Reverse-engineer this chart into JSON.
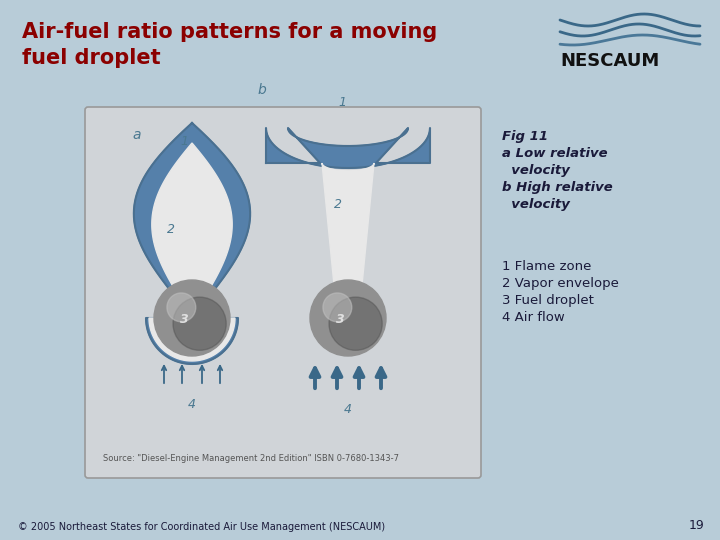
{
  "title_line1": "Air-fuel ratio patterns for a moving",
  "title_line2": "fuel droplet",
  "title_color": "#8B0000",
  "bg_color": "#b8ccd8",
  "panel_bg": "#d0d4d8",
  "fig_label_lines": [
    "Fig 11",
    "a Low relative",
    "  velocity",
    "b High relative",
    "  velocity"
  ],
  "legend_items": [
    "1 Flame zone",
    "2 Vapor envelope",
    "3 Fuel droplet",
    "4 Air flow"
  ],
  "text_color": "#1a1a3a",
  "footer_text": "© 2005 Northeast States for Coordinated Air Use Management (NESCAUM)",
  "page_num": "19",
  "source_text": "Source: \"Diesel-Engine Management 2nd Edition\" ISBN 0-7680-1343-7",
  "nescaum_text": "NESCAUM",
  "flame_blue": "#5580aa",
  "flame_blue_dark": "#4a7090",
  "vapor_white": "#e8e8e8",
  "sphere_mid": "#909090",
  "sphere_dark": "#505050",
  "sphere_light": "#c0c0c0",
  "arrow_color": "#3a6888",
  "label_color": "#4a7890"
}
